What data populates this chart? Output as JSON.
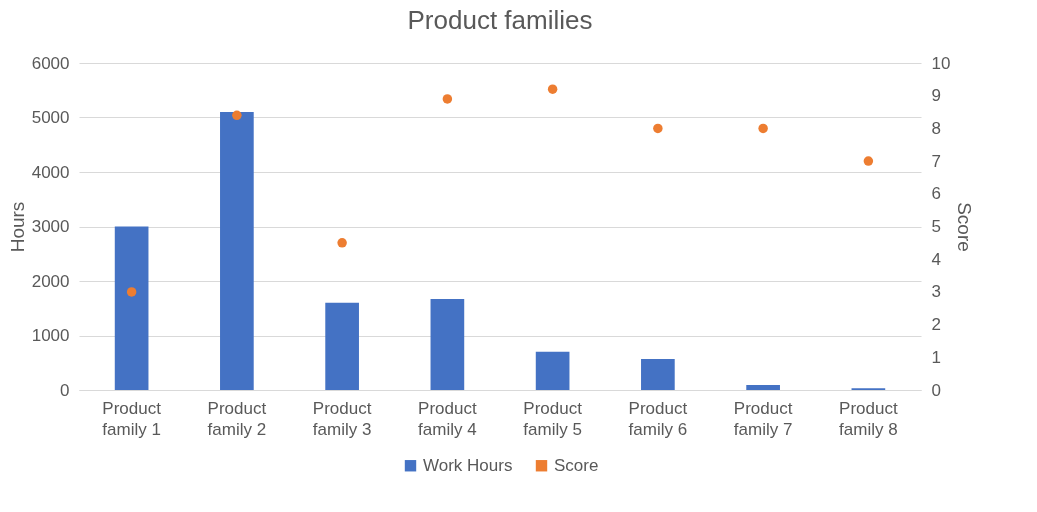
{
  "chart_data": {
    "type": "bar",
    "title": "Product families",
    "ylabel": "Hours",
    "y2label": "Score",
    "categories": [
      "Product family 1",
      "Product family 2",
      "Product family 3",
      "Product family 4",
      "Product family 5",
      "Product family 6",
      "Product family 7",
      "Product family 8"
    ],
    "series": [
      {
        "name": "Work Hours",
        "color": "#4472c4",
        "values": [
          3000,
          5100,
          1600,
          1670,
          700,
          570,
          90,
          30
        ]
      },
      {
        "name": "Score",
        "type": "scatter",
        "axis": "y2",
        "color": "#ed7d31",
        "values": [
          3,
          8.4,
          4.5,
          8.9,
          9.2,
          8,
          8,
          7
        ]
      }
    ],
    "ylim": [
      0,
      6000
    ],
    "yticks": [
      0,
      1000,
      2000,
      3000,
      4000,
      5000,
      6000
    ],
    "y2lim": [
      0,
      10
    ],
    "y2ticks": [
      0,
      1,
      2,
      3,
      4,
      5,
      6,
      7,
      8,
      9,
      10
    ],
    "grid": "y",
    "legend": "bottom",
    "marker": "circle"
  }
}
